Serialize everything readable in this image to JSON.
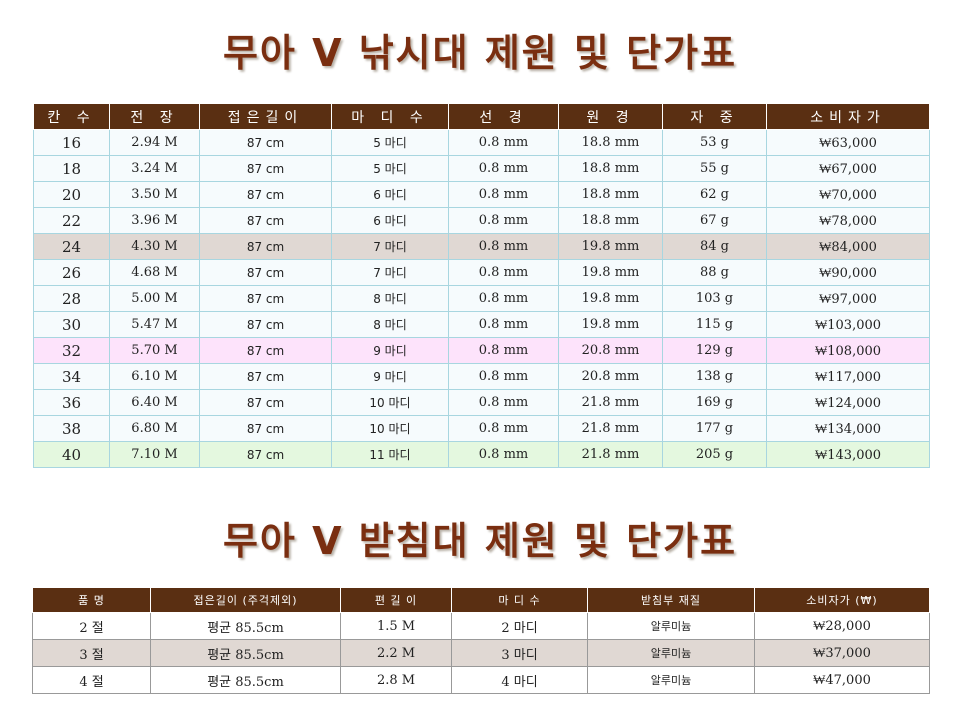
{
  "rod_section": {
    "title": "무아 V 낚시대 제원 및 단가표",
    "headers": [
      "칸 수",
      "전 장",
      "접은길이",
      "마 디 수",
      "선 경",
      "원 경",
      "자 중",
      "소비자가"
    ],
    "rows": [
      [
        "16",
        "2.94 M",
        "87 cm",
        "5 마디",
        "0.8 mm",
        "18.8 mm",
        "53 g",
        "₩63,000"
      ],
      [
        "18",
        "3.24 M",
        "87 cm",
        "5 마디",
        "0.8 mm",
        "18.8 mm",
        "55 g",
        "₩67,000"
      ],
      [
        "20",
        "3.50 M",
        "87 cm",
        "6 마디",
        "0.8 mm",
        "18.8 mm",
        "62 g",
        "₩70,000"
      ],
      [
        "22",
        "3.96 M",
        "87 cm",
        "6 마디",
        "0.8 mm",
        "18.8 mm",
        "67 g",
        "₩78,000"
      ],
      [
        "24",
        "4.30 M",
        "87 cm",
        "7 마디",
        "0.8 mm",
        "19.8 mm",
        "84 g",
        "₩84,000"
      ],
      [
        "26",
        "4.68 M",
        "87 cm",
        "7 마디",
        "0.8 mm",
        "19.8 mm",
        "88 g",
        "₩90,000"
      ],
      [
        "28",
        "5.00 M",
        "87 cm",
        "8 마디",
        "0.8 mm",
        "19.8 mm",
        "103 g",
        "₩97,000"
      ],
      [
        "30",
        "5.47 M",
        "87 cm",
        "8 마디",
        "0.8 mm",
        "19.8 mm",
        "115 g",
        "₩103,000"
      ],
      [
        "32",
        "5.70 M",
        "87 cm",
        "9 마디",
        "0.8 mm",
        "20.8 mm",
        "129 g",
        "₩108,000"
      ],
      [
        "34",
        "6.10 M",
        "87 cm",
        "9 마디",
        "0.8 mm",
        "20.8 mm",
        "138 g",
        "₩117,000"
      ],
      [
        "36",
        "6.40 M",
        "87 cm",
        "10 마디",
        "0.8 mm",
        "21.8 mm",
        "169 g",
        "₩124,000"
      ],
      [
        "38",
        "6.80 M",
        "87 cm",
        "10 마디",
        "0.8 mm",
        "21.8 mm",
        "177 g",
        "₩134,000"
      ],
      [
        "40",
        "7.10 M",
        "87 cm",
        "11 마디",
        "0.8 mm",
        "21.8 mm",
        "205 g",
        "₩143,000"
      ]
    ],
    "row_highlights": {
      "4": "#e0d8d3",
      "8": "#fde3fb",
      "12": "#e4f8df"
    }
  },
  "stand_section": {
    "title": "무아 V 받침대 제원 및 단가표",
    "headers": [
      "품 명",
      "접은길이 (주걱제외)",
      "편 길 이",
      "마 디 수",
      "받침부 재질",
      "소비자가 (₩)"
    ],
    "rows": [
      [
        "2 절",
        "평균 85.5cm",
        "1.5 M",
        "2 마디",
        "알루미늄",
        "₩28,000"
      ],
      [
        "3 절",
        "평균 85.5cm",
        "2.2 M",
        "3 마디",
        "알루미늄",
        "₩37,000"
      ],
      [
        "4 절",
        "평균 85.5cm",
        "2.8 M",
        "4 마디",
        "알루미늄",
        "₩47,000"
      ]
    ]
  },
  "colors": {
    "title": "#7a2e10",
    "header_bg": "#5a2f12",
    "grid": "#a8d6e0"
  }
}
